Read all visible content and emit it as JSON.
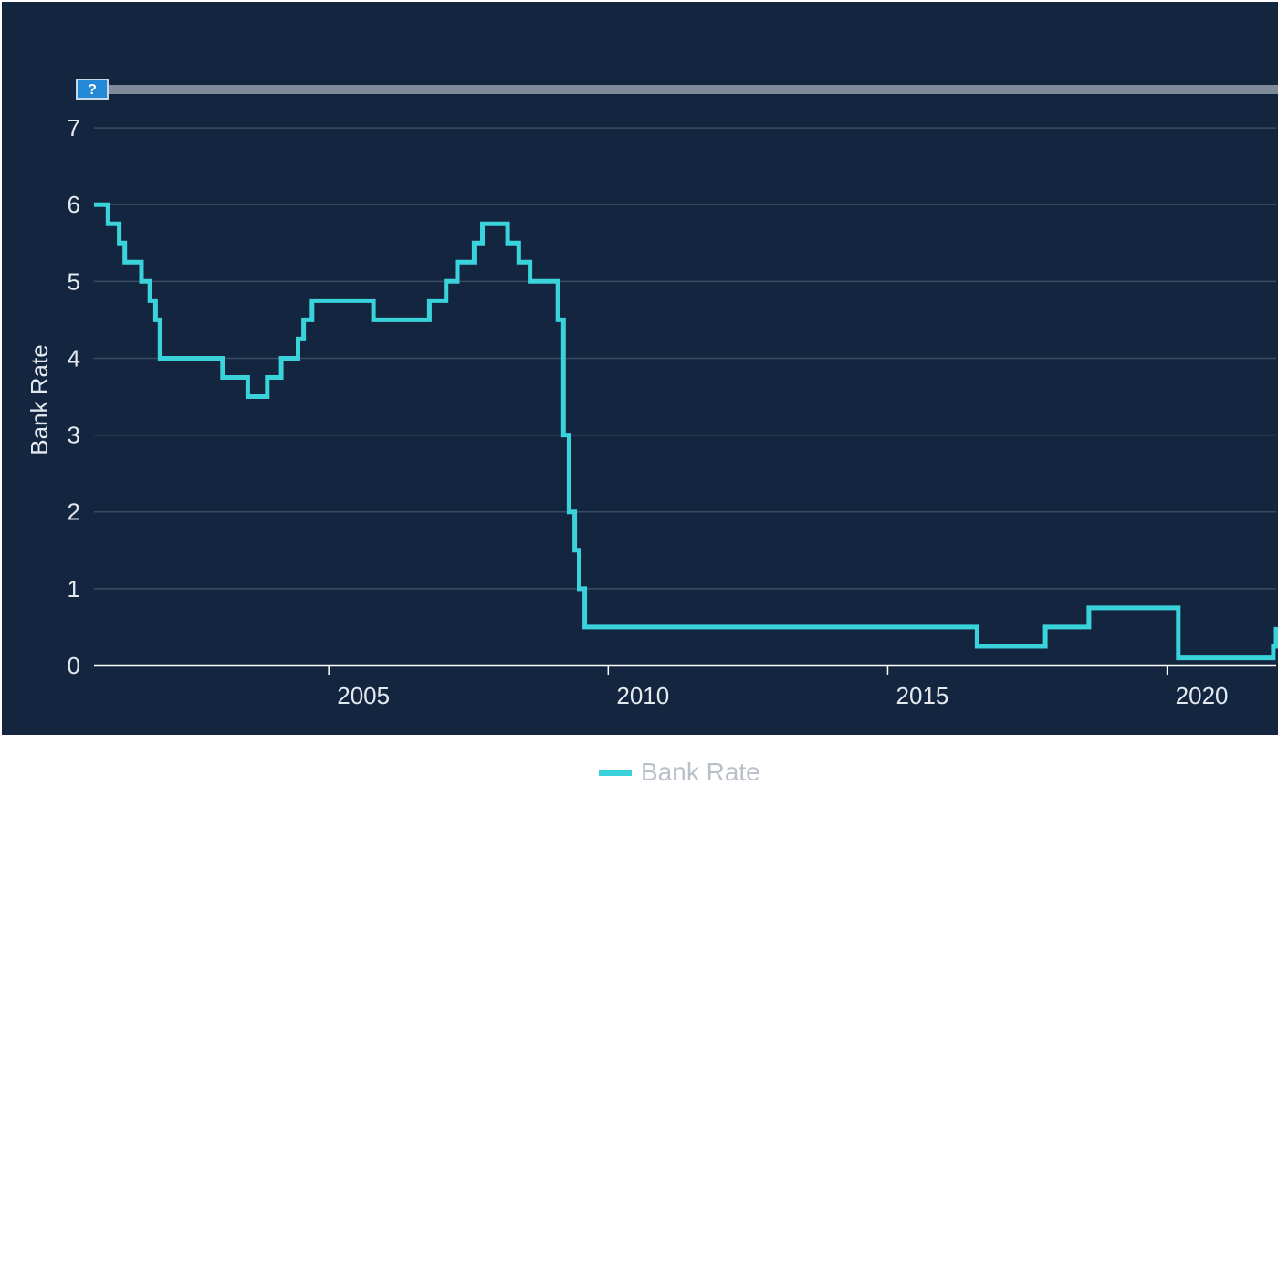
{
  "chart_data": {
    "type": "line",
    "step": true,
    "ylabel": "Bank Rate",
    "xlabel": "",
    "ylim": [
      0,
      7.5
    ],
    "yticks": [
      0,
      1,
      2,
      3,
      4,
      5,
      6,
      7
    ],
    "xlim": [
      2000.8,
      2021.95
    ],
    "xticks": [
      2005,
      2010,
      2015,
      2020
    ],
    "grid": true,
    "legend": {
      "position": "bottom-center",
      "entries": [
        "Bank Rate"
      ]
    },
    "help_label": "?",
    "colors": {
      "background": "#14263f",
      "line": "#3ad3dc",
      "grid": "#3a4b64",
      "axis": "#ffffff",
      "range_bar": "#7f8a98"
    },
    "series": [
      {
        "name": "Bank Rate",
        "points": [
          [
            2000.8,
            6.0
          ],
          [
            2001.05,
            5.75
          ],
          [
            2001.25,
            5.5
          ],
          [
            2001.35,
            5.25
          ],
          [
            2001.65,
            5.0
          ],
          [
            2001.8,
            4.75
          ],
          [
            2001.9,
            4.5
          ],
          [
            2001.98,
            4.0
          ],
          [
            2003.1,
            3.75
          ],
          [
            2003.55,
            3.5
          ],
          [
            2003.9,
            3.75
          ],
          [
            2004.15,
            4.0
          ],
          [
            2004.45,
            4.25
          ],
          [
            2004.55,
            4.5
          ],
          [
            2004.7,
            4.75
          ],
          [
            2005.8,
            4.5
          ],
          [
            2006.8,
            4.75
          ],
          [
            2007.1,
            5.0
          ],
          [
            2007.3,
            5.25
          ],
          [
            2007.6,
            5.5
          ],
          [
            2007.75,
            5.75
          ],
          [
            2008.2,
            5.5
          ],
          [
            2008.4,
            5.25
          ],
          [
            2008.6,
            5.0
          ],
          [
            2009.1,
            4.5
          ],
          [
            2009.2,
            3.0
          ],
          [
            2009.3,
            2.0
          ],
          [
            2009.4,
            1.5
          ],
          [
            2009.48,
            1.0
          ],
          [
            2009.58,
            0.5
          ],
          [
            2016.6,
            0.25
          ],
          [
            2017.82,
            0.5
          ],
          [
            2018.6,
            0.75
          ],
          [
            2020.2,
            0.1
          ],
          [
            2021.9,
            0.25
          ],
          [
            2021.95,
            0.5
          ]
        ]
      }
    ]
  }
}
